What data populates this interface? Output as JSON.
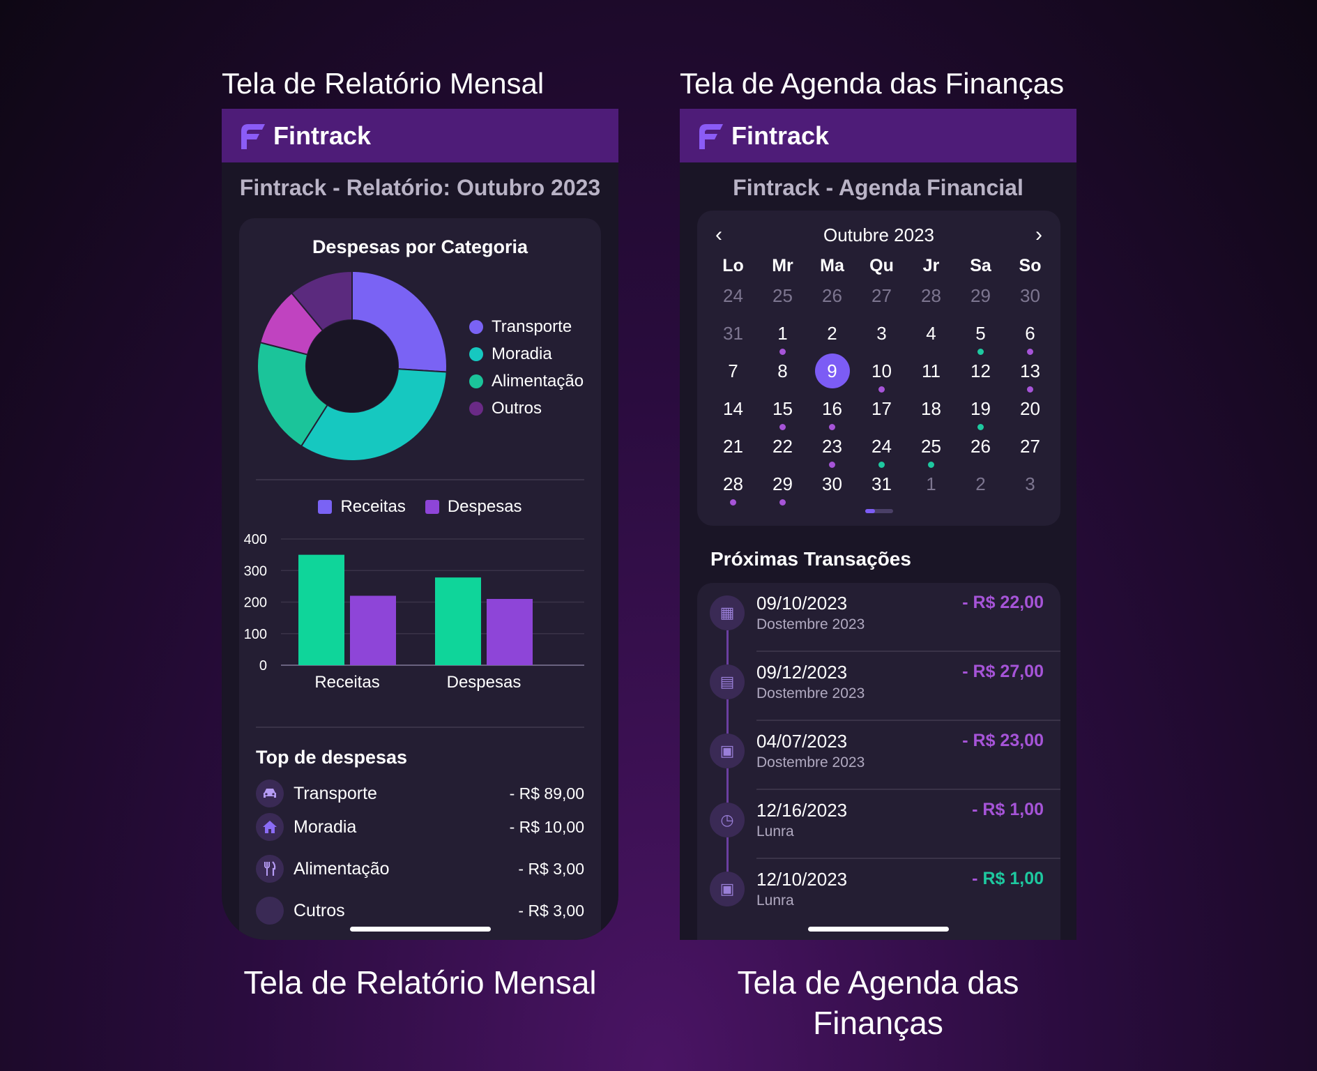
{
  "captions": {
    "left_top": "Tela de Relatório Mensal",
    "right_top": "Tela de Agenda das Finanças",
    "left_bottom": "Tela de Relatório Mensal",
    "right_bottom_line1": "Tela de Agenda das",
    "right_bottom_line2": "Finanças"
  },
  "brand": "Fintrack",
  "colors": {
    "appbar": "#4e1c78",
    "transporte": "#7a63f4",
    "moradia": "#16c8c0",
    "alimentacao": "#1bc49a",
    "outros": "#6a2a86",
    "outros_pie": "#c043c0",
    "receitas_bar": "#0fd59a",
    "despesas_bar": "#8e45d8",
    "negative": "#a654d8",
    "positive": "#1ec9a0"
  },
  "report": {
    "title": "Fintrack - Relatório: Outubro 2023",
    "donut_title": "Despesas por Categoria",
    "legend": [
      {
        "label": "Transporte",
        "color": "#7a63f4"
      },
      {
        "label": "Moradia",
        "color": "#16c8c0"
      },
      {
        "label": "Alimentação",
        "color": "#1bc49a"
      },
      {
        "label": "Outros",
        "color": "#6a2a86"
      }
    ],
    "top_title": "Top de despesas",
    "top_items": [
      {
        "label": "Transporte",
        "amount": "- R$ 89,00",
        "icon": "car-icon"
      },
      {
        "label": "Moradia",
        "amount": "- R$ 10,00",
        "icon": "home-icon"
      },
      {
        "label": "Alimentação",
        "amount": "- R$ 3,00",
        "icon": "utensils-icon"
      },
      {
        "label": "Cutros",
        "amount": "- R$ 3,00",
        "icon": "blank-icon"
      }
    ]
  },
  "chart_data": [
    {
      "type": "pie",
      "title": "Despesas por Categoria",
      "categories": [
        "Transporte",
        "Moradia",
        "Alimentação",
        "Outros",
        "Outros (2)"
      ],
      "values": [
        26,
        33,
        20,
        10,
        11
      ],
      "colors": [
        "#7a63f4",
        "#16c8c0",
        "#1bc49a",
        "#c043c0",
        "#5b2a7e"
      ],
      "legend": "right"
    },
    {
      "type": "bar",
      "categories": [
        "Receitas",
        "Despesas"
      ],
      "series": [
        {
          "name": "Receitas",
          "values": [
            350,
            278
          ],
          "color": "#0fd59a"
        },
        {
          "name": "Despesas",
          "values": [
            220,
            210
          ],
          "color": "#8e45d8"
        }
      ],
      "yticks": [
        "400",
        "300",
        "200",
        "100",
        "0"
      ],
      "ylim": [
        0,
        400
      ],
      "grid": true,
      "legend": "top"
    }
  ],
  "agenda": {
    "title": "Fintrack - Agenda Financial",
    "month": "Outubre 2023",
    "weekdays": [
      "Lo",
      "Mr",
      "Ma",
      "Qu",
      "Jr",
      "Sa",
      "So"
    ],
    "days": [
      {
        "n": "24",
        "m": true
      },
      {
        "n": "25",
        "m": true
      },
      {
        "n": "26",
        "m": true
      },
      {
        "n": "27",
        "m": true
      },
      {
        "n": "28",
        "m": true
      },
      {
        "n": "29",
        "m": true
      },
      {
        "n": "30",
        "m": true
      },
      {
        "n": "31",
        "m": true
      },
      {
        "n": "1",
        "d": "p"
      },
      {
        "n": "2"
      },
      {
        "n": "3"
      },
      {
        "n": "4"
      },
      {
        "n": "5",
        "d": "g"
      },
      {
        "n": "6",
        "d": "p"
      },
      {
        "n": "7"
      },
      {
        "n": "8"
      },
      {
        "n": "9",
        "sel": true
      },
      {
        "n": "10",
        "d": "p"
      },
      {
        "n": "11"
      },
      {
        "n": "12"
      },
      {
        "n": "13",
        "d": "p"
      },
      {
        "n": "14"
      },
      {
        "n": "15",
        "d": "p"
      },
      {
        "n": "16",
        "d": "p"
      },
      {
        "n": "17"
      },
      {
        "n": "18"
      },
      {
        "n": "19",
        "d": "g"
      },
      {
        "n": "20"
      },
      {
        "n": "21"
      },
      {
        "n": "22"
      },
      {
        "n": "23",
        "d": "p"
      },
      {
        "n": "24",
        "d": "g"
      },
      {
        "n": "25",
        "d": "g"
      },
      {
        "n": "26"
      },
      {
        "n": "27"
      },
      {
        "n": "28",
        "d": "p"
      },
      {
        "n": "29",
        "d": "p"
      },
      {
        "n": "30"
      },
      {
        "n": "31"
      },
      {
        "n": "1",
        "m": true
      },
      {
        "n": "2",
        "m": true
      },
      {
        "n": "3",
        "m": true
      }
    ],
    "tx_title": "Próximas Transações",
    "transactions": [
      {
        "date": "09/10/2023",
        "sub": "Dostembre 2023",
        "amount": "- R$ 22,00",
        "positive": false,
        "icon": "card-icon"
      },
      {
        "date": "09/12/2023",
        "sub": "Dostembre 2023",
        "amount": "- R$ 27,00",
        "positive": false,
        "icon": "wallet-icon"
      },
      {
        "date": "04/07/2023",
        "sub": "Dostembre 2023",
        "amount": "- R$ 23,00",
        "positive": false,
        "icon": "calendar-icon"
      },
      {
        "date": "12/16/2023",
        "sub": "Lunra",
        "amount": "- R$ 1,00",
        "positive": false,
        "icon": "clock-icon"
      },
      {
        "date": "12/10/2023",
        "sub": "Lunra",
        "amount_prefix": "- ",
        "amount": "R$ 1,00",
        "positive": true,
        "icon": "calendar-check-icon"
      }
    ]
  }
}
